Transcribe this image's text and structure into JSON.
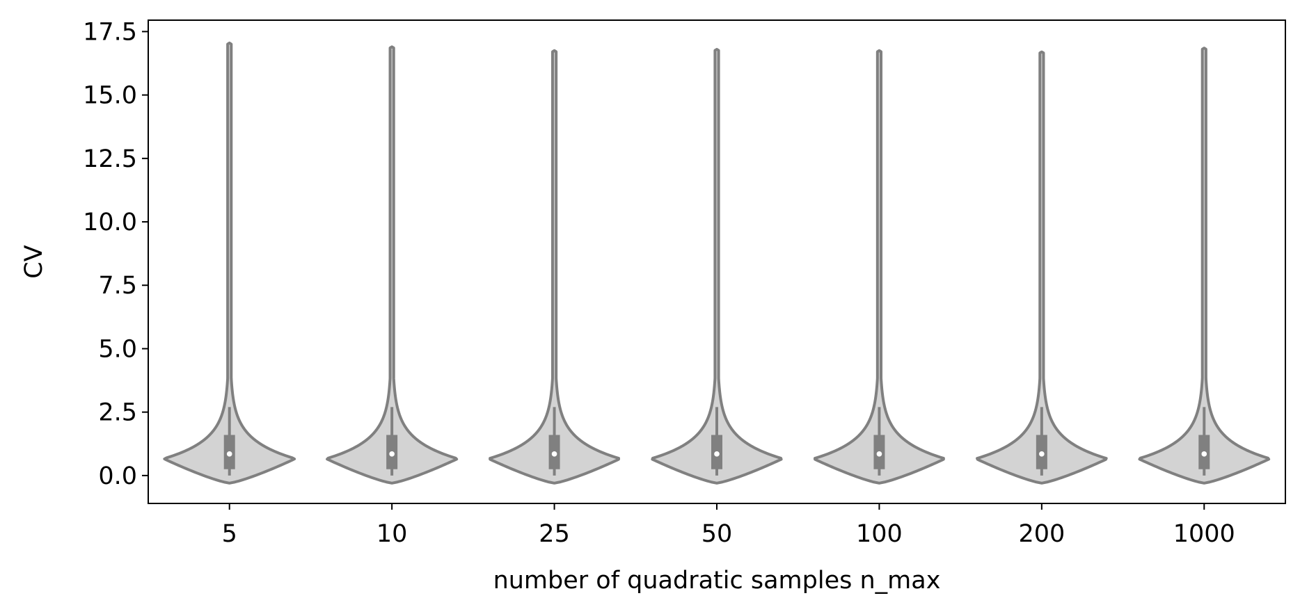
{
  "chart_data": {
    "type": "violin",
    "xlabel": "number of quadratic samples n_max",
    "ylabel": "CV",
    "categories": [
      "5",
      "10",
      "25",
      "50",
      "100",
      "200",
      "1000"
    ],
    "ylim": [
      -1.1,
      17.95
    ],
    "yticks": [
      0.0,
      2.5,
      5.0,
      7.5,
      10.0,
      12.5,
      15.0,
      17.5
    ],
    "ytick_labels": [
      "0.0",
      "2.5",
      "5.0",
      "7.5",
      "10.0",
      "12.5",
      "15.0",
      "17.5"
    ],
    "grid": false,
    "legend": "none",
    "colors": {
      "fill": "#d3d3d3",
      "edge": "#808080",
      "median": "#ffffff"
    },
    "series": [
      {
        "category": "5",
        "min": -0.3,
        "max": 17.05,
        "q1": 0.25,
        "median": 0.85,
        "q3": 1.6,
        "whisker_low": 0.0,
        "whisker_high": 2.7
      },
      {
        "category": "10",
        "min": -0.3,
        "max": 16.9,
        "q1": 0.25,
        "median": 0.85,
        "q3": 1.6,
        "whisker_low": 0.0,
        "whisker_high": 2.7
      },
      {
        "category": "25",
        "min": -0.3,
        "max": 16.75,
        "q1": 0.25,
        "median": 0.85,
        "q3": 1.6,
        "whisker_low": 0.0,
        "whisker_high": 2.7
      },
      {
        "category": "50",
        "min": -0.3,
        "max": 16.8,
        "q1": 0.25,
        "median": 0.85,
        "q3": 1.6,
        "whisker_low": 0.0,
        "whisker_high": 2.7
      },
      {
        "category": "100",
        "min": -0.3,
        "max": 16.75,
        "q1": 0.25,
        "median": 0.85,
        "q3": 1.6,
        "whisker_low": 0.0,
        "whisker_high": 2.7
      },
      {
        "category": "200",
        "min": -0.3,
        "max": 16.7,
        "q1": 0.25,
        "median": 0.85,
        "q3": 1.6,
        "whisker_low": 0.0,
        "whisker_high": 2.7
      },
      {
        "category": "1000",
        "min": -0.3,
        "max": 16.85,
        "q1": 0.25,
        "median": 0.85,
        "q3": 1.6,
        "whisker_low": 0.0,
        "whisker_high": 2.7
      }
    ]
  }
}
